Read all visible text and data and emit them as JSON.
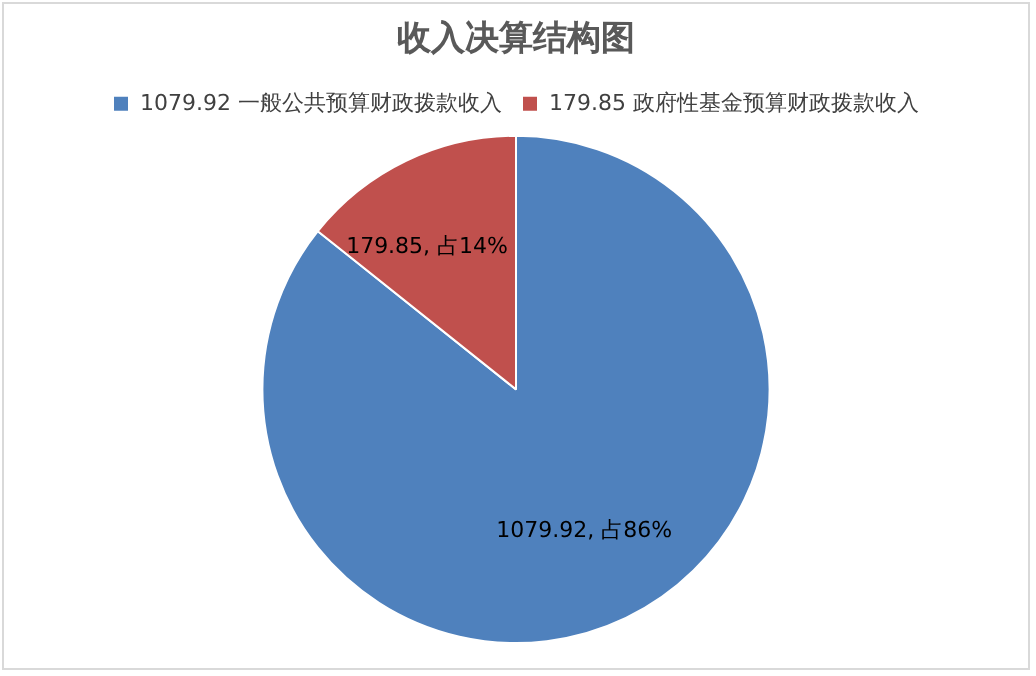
{
  "chart_data": {
    "type": "pie",
    "title": "收入决算结构图",
    "categories": [
      "1079.92 一般公共预算财政拨款收入",
      "179.85 政府性基金预算财政拨款收入"
    ],
    "values": [
      1079.92,
      179.85
    ],
    "colors": [
      "#4f81bd",
      "#c0504d"
    ],
    "value_labels": [
      "1079.92, 占86%",
      "179.85, 占14%"
    ],
    "legend": "top"
  }
}
